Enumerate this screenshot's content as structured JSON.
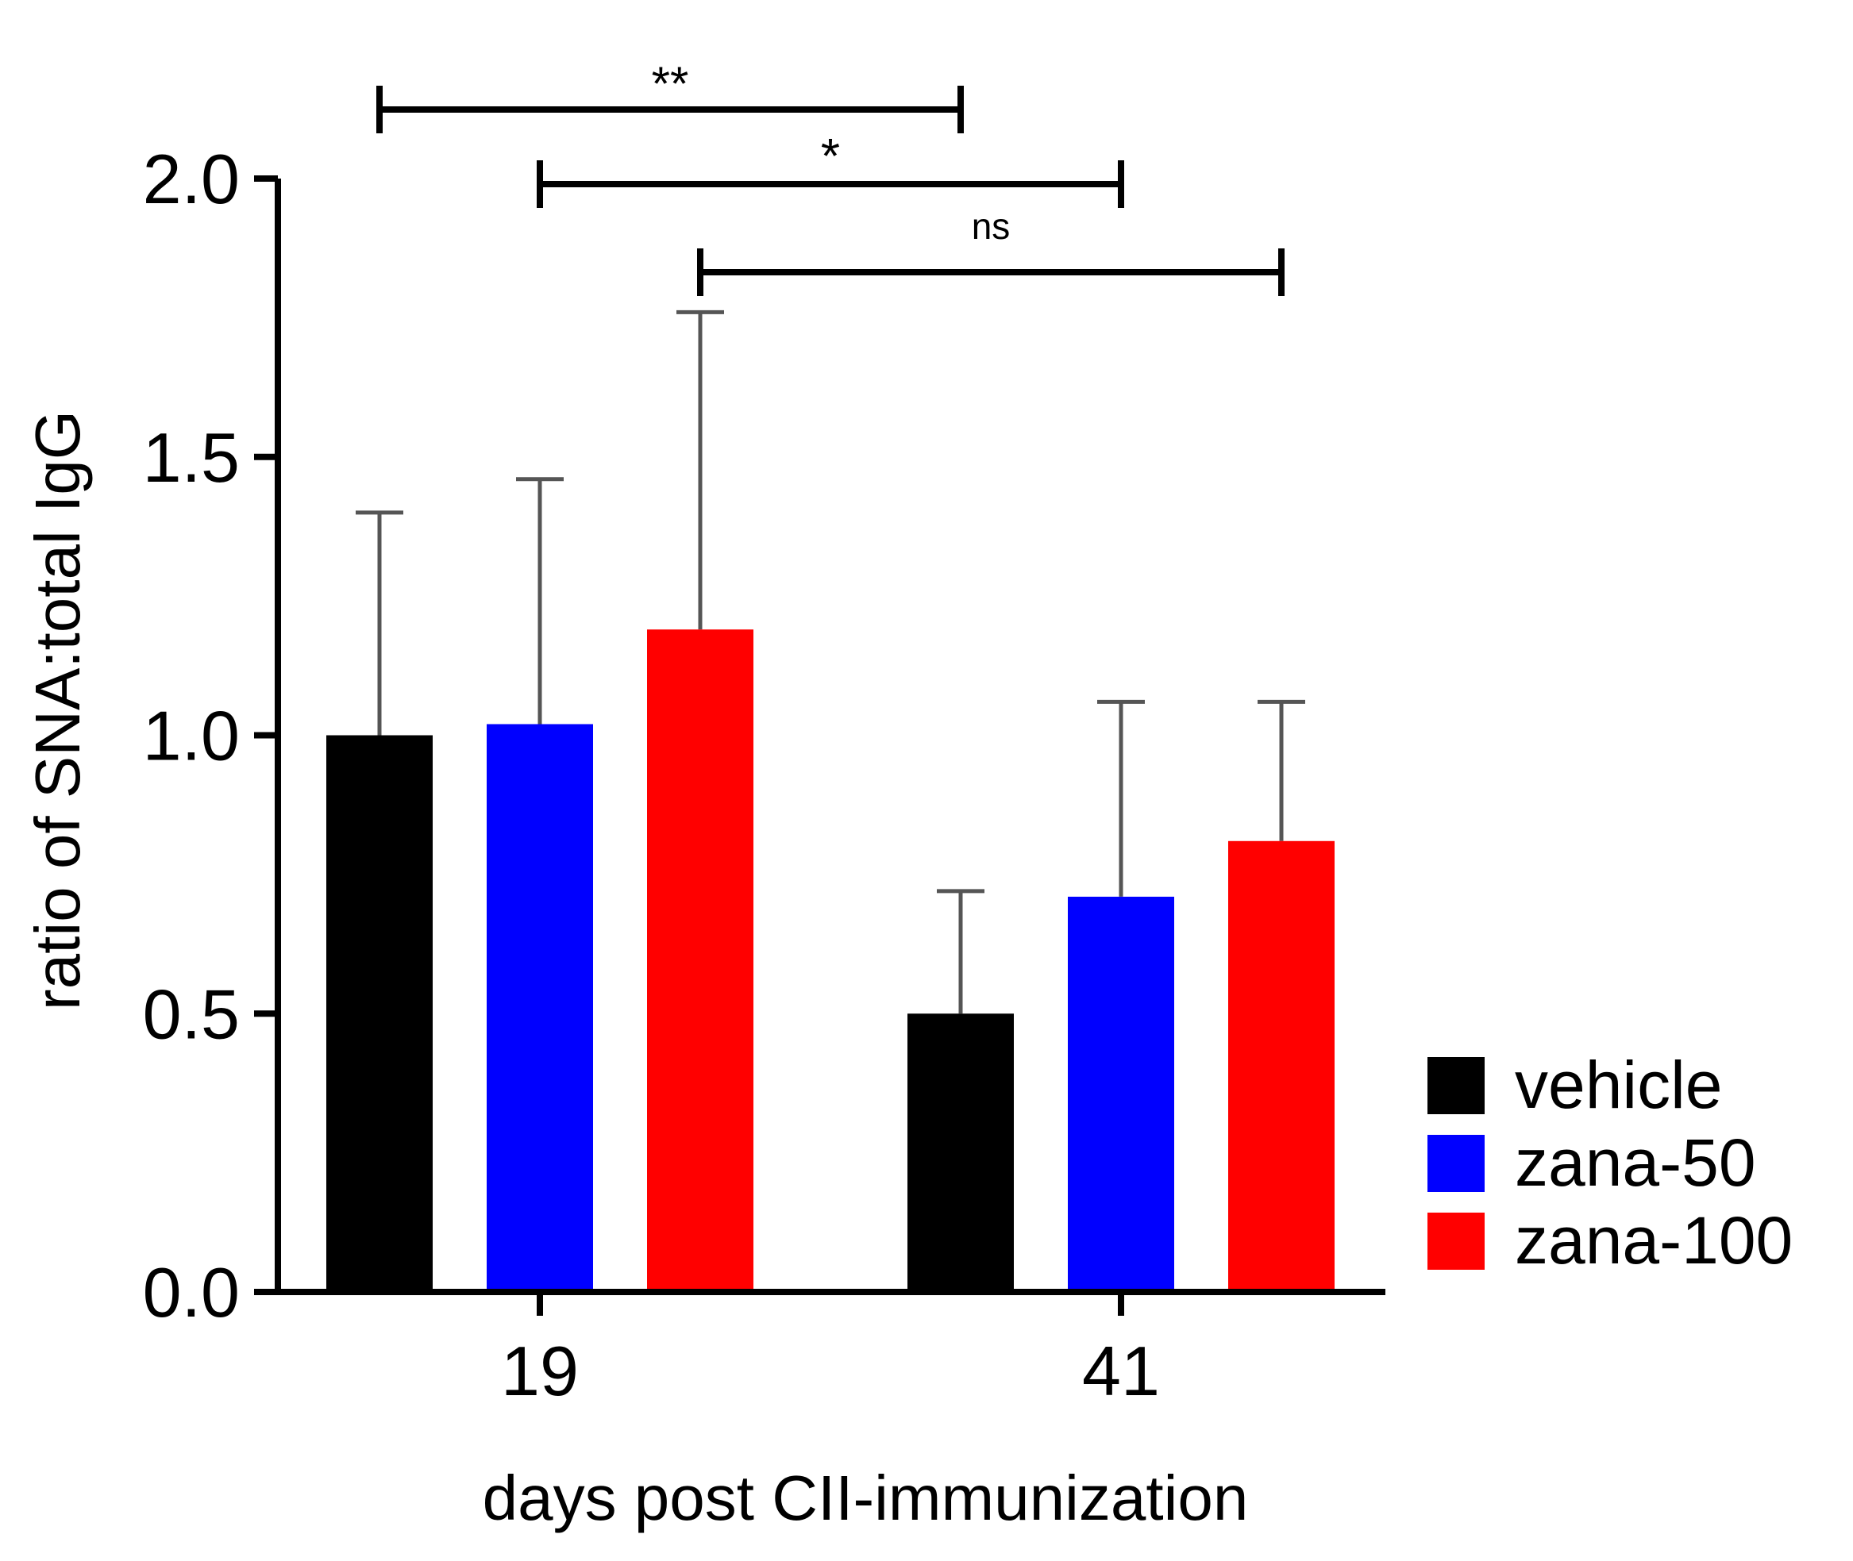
{
  "chart_data": {
    "type": "bar",
    "title": "",
    "xlabel": "days post CII-immunization",
    "ylabel": "ratio of SNA:total IgG",
    "ylim": [
      0,
      2.0
    ],
    "yticks": [
      0.0,
      0.5,
      1.0,
      1.5,
      2.0
    ],
    "ytick_labels": [
      "0.0",
      "0.5",
      "1.0",
      "1.5",
      "2.0"
    ],
    "categories": [
      "19",
      "41"
    ],
    "series": [
      {
        "name": "vehicle",
        "color": "#000000",
        "values": [
          1.0,
          0.5
        ],
        "error_upper": [
          1.4,
          0.72
        ]
      },
      {
        "name": "zana-50",
        "color": "#0000FF",
        "values": [
          1.02,
          0.71
        ],
        "error_upper": [
          1.46,
          1.06
        ]
      },
      {
        "name": "zana-100",
        "color": "#FF0000",
        "values": [
          1.19,
          0.81
        ],
        "error_upper": [
          1.76,
          1.06
        ]
      }
    ],
    "significance": [
      {
        "label": "**",
        "from": {
          "category": 0,
          "series": 0
        },
        "to": {
          "category": 1,
          "series": 0
        }
      },
      {
        "label": "*",
        "from": {
          "category": 0,
          "series": 1
        },
        "to": {
          "category": 1,
          "series": 1
        }
      },
      {
        "label": "ns",
        "from": {
          "category": 0,
          "series": 2
        },
        "to": {
          "category": 1,
          "series": 2
        }
      }
    ],
    "legend": {
      "position": "right-bottom",
      "entries": [
        "vehicle",
        "zana-50",
        "zana-100"
      ]
    }
  }
}
